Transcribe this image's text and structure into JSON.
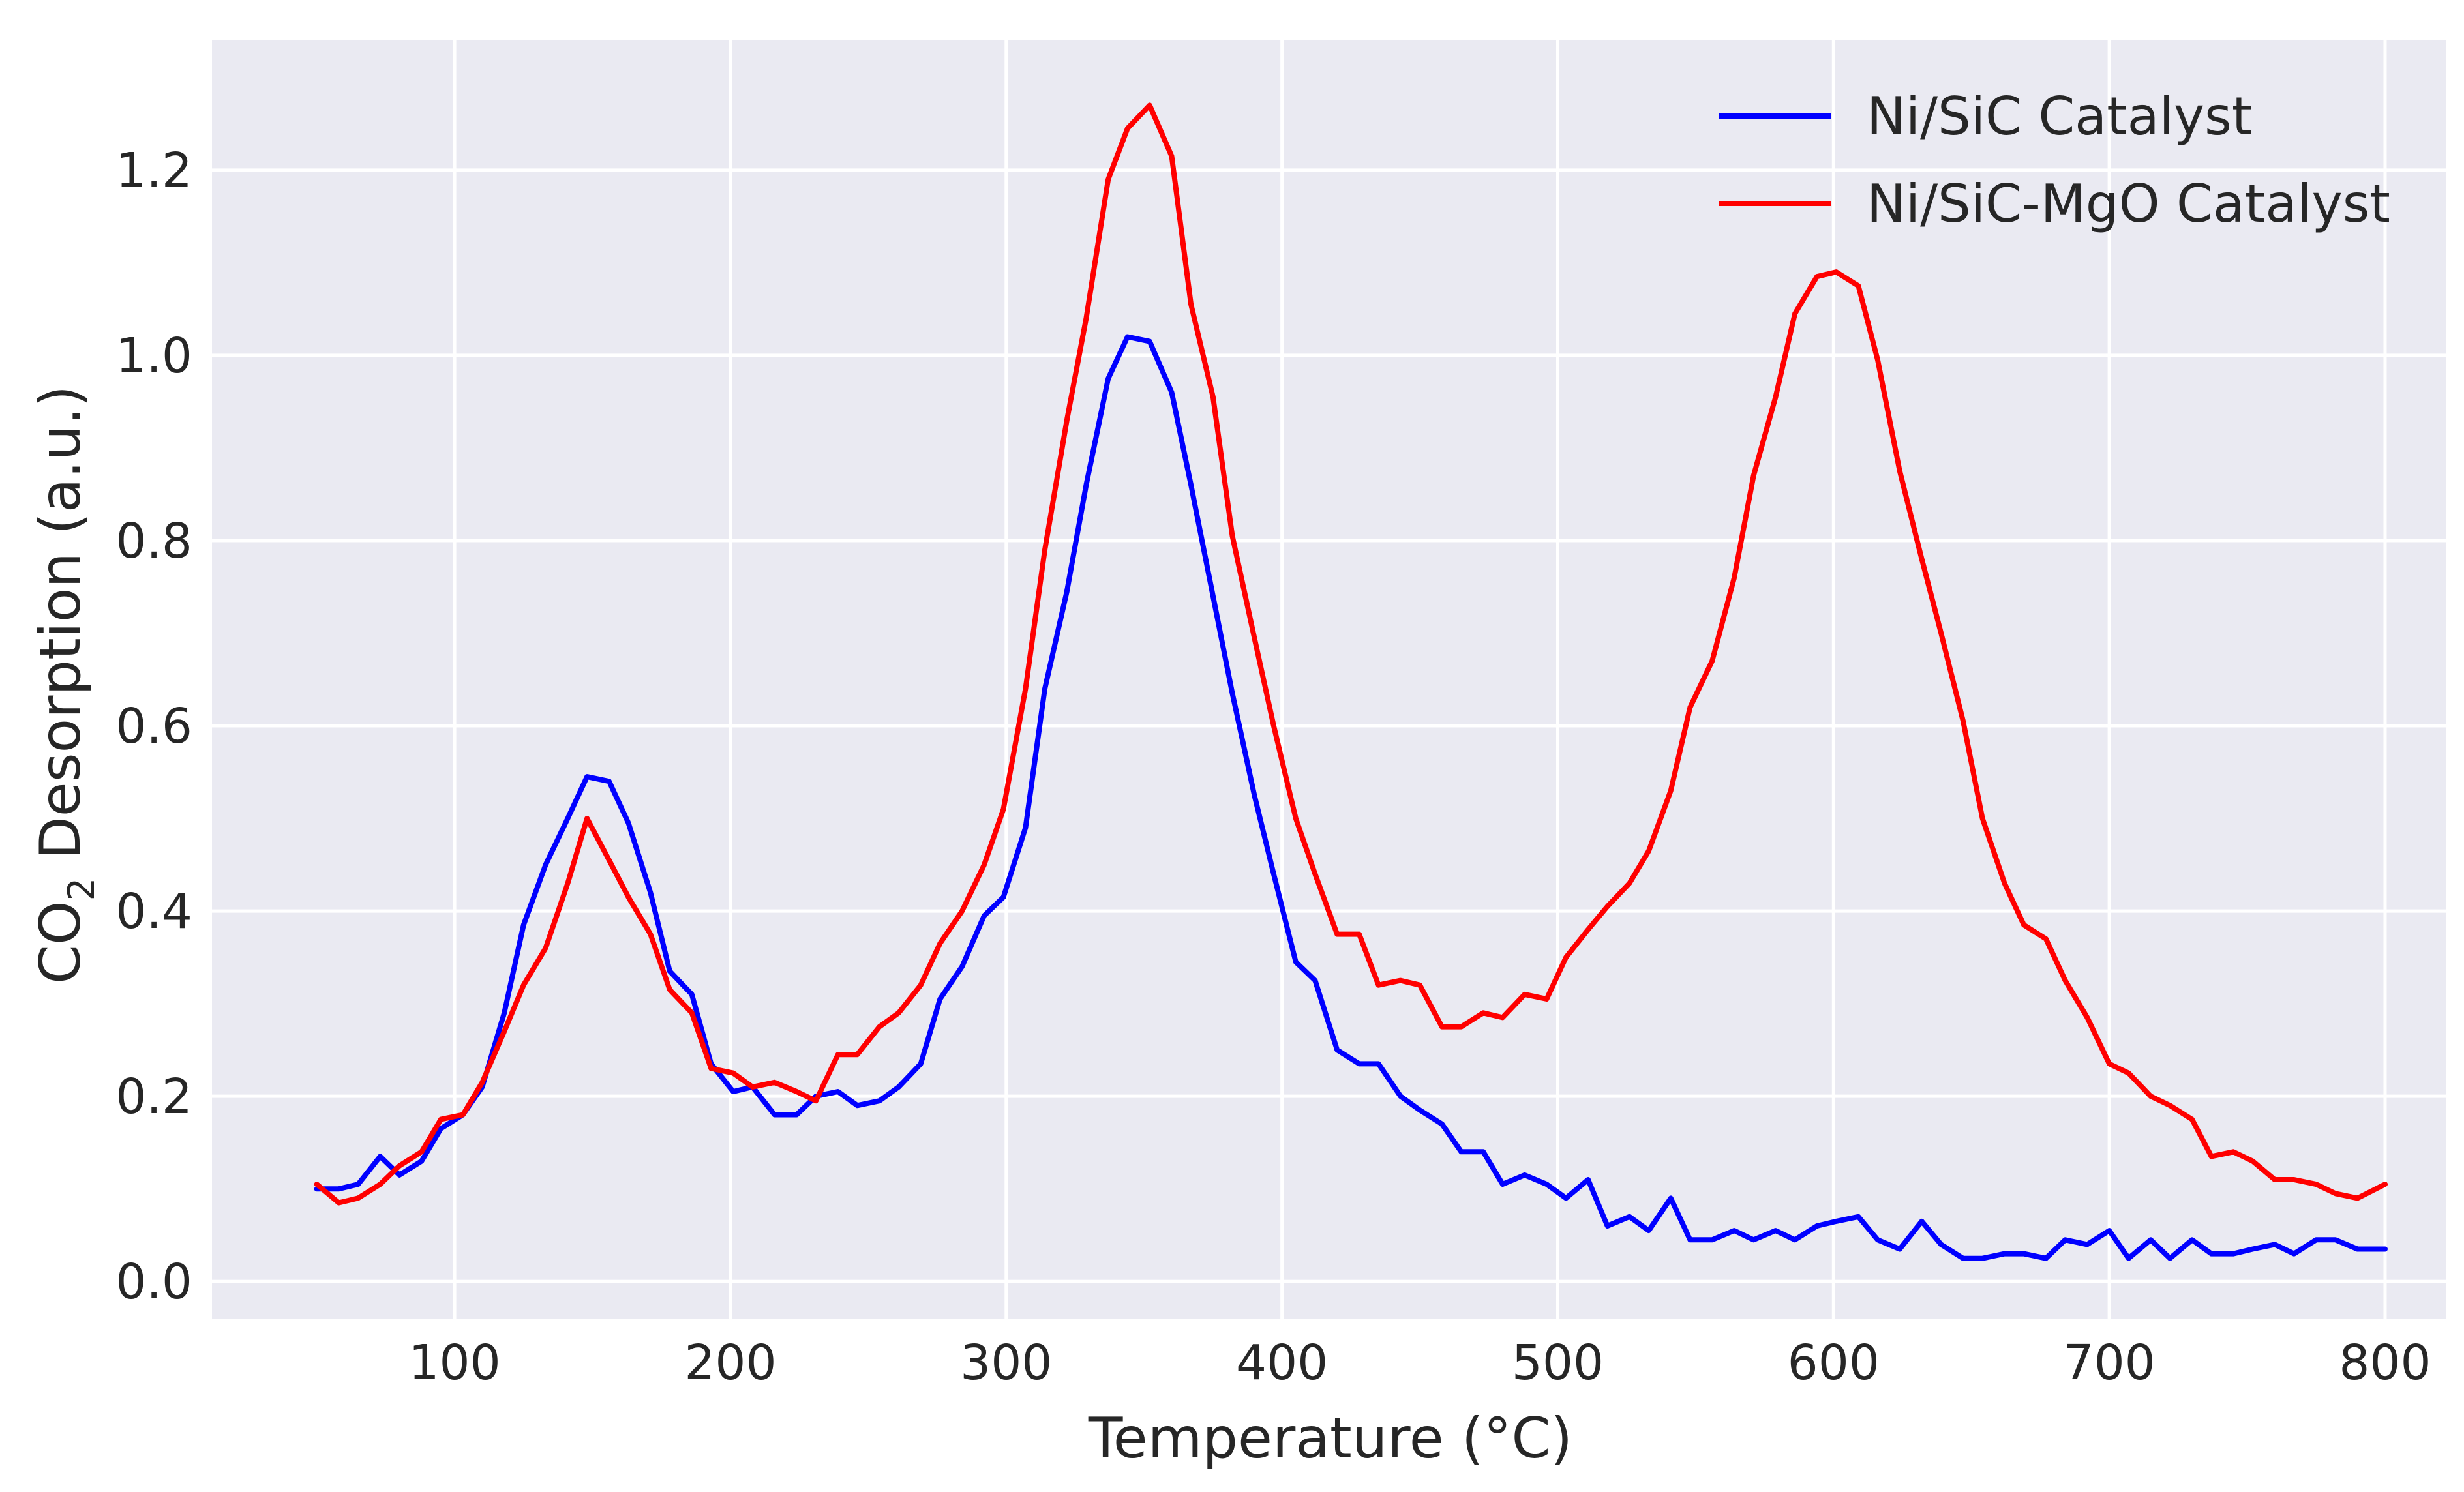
{
  "chart_data": {
    "type": "line",
    "title": "",
    "xlabel": "Temperature (°C)",
    "ylabel_sub": "CO",
    "ylabel_subscript": "2",
    "ylabel_rest": " Desorption (a.u.)",
    "xlim": [
      12,
      822
    ],
    "ylim": [
      -0.04,
      1.34
    ],
    "xticks": [
      100,
      200,
      300,
      400,
      500,
      600,
      700,
      800
    ],
    "xtick_labels": [
      "100",
      "200",
      "300",
      "400",
      "500",
      "600",
      "700",
      "800"
    ],
    "yticks": [
      0.0,
      0.2,
      0.4,
      0.6,
      0.8,
      1.0,
      1.2
    ],
    "ytick_labels": [
      "0.0",
      "0.2",
      "0.4",
      "0.6",
      "0.8",
      "1.0",
      "1.2"
    ],
    "grid": true,
    "legend_position": "top-right",
    "background": "#EAEAF2",
    "series": [
      {
        "name": "Ni/SiC Catalyst",
        "color": "#0000FF",
        "x": [
          50,
          58,
          65,
          73,
          80,
          88,
          95,
          103,
          110,
          118,
          125,
          133,
          141,
          148,
          156,
          163,
          171,
          178,
          186,
          193,
          201,
          208,
          216,
          224,
          231,
          239,
          246,
          254,
          261,
          269,
          276,
          284,
          292,
          299,
          307,
          314,
          322,
          329,
          337,
          344,
          352,
          360,
          367,
          375,
          382,
          390,
          397,
          405,
          412,
          420,
          428,
          435,
          443,
          450,
          458,
          465,
          473,
          480,
          488,
          496,
          503,
          511,
          518,
          526,
          533,
          541,
          548,
          556,
          564,
          571,
          579,
          586,
          594,
          601,
          609,
          616,
          624,
          632,
          639,
          647,
          654,
          662,
          669,
          677,
          684,
          692,
          700,
          707,
          715,
          722,
          730,
          737,
          745,
          752,
          760,
          767,
          775,
          782,
          790,
          800
        ],
        "y": [
          0.1,
          0.1,
          0.105,
          0.135,
          0.115,
          0.13,
          0.165,
          0.18,
          0.21,
          0.29,
          0.385,
          0.45,
          0.5,
          0.545,
          0.54,
          0.495,
          0.42,
          0.335,
          0.31,
          0.235,
          0.205,
          0.21,
          0.18,
          0.18,
          0.2,
          0.205,
          0.19,
          0.195,
          0.21,
          0.235,
          0.305,
          0.34,
          0.395,
          0.415,
          0.49,
          0.64,
          0.745,
          0.86,
          0.975,
          1.02,
          1.015,
          0.96,
          0.86,
          0.74,
          0.635,
          0.525,
          0.44,
          0.345,
          0.325,
          0.25,
          0.235,
          0.235,
          0.2,
          0.185,
          0.17,
          0.14,
          0.14,
          0.105,
          0.115,
          0.105,
          0.09,
          0.11,
          0.06,
          0.07,
          0.055,
          0.09,
          0.045,
          0.045,
          0.055,
          0.045,
          0.055,
          0.045,
          0.06,
          0.065,
          0.07,
          0.045,
          0.035,
          0.065,
          0.04,
          0.025,
          0.025,
          0.03,
          0.03,
          0.025,
          0.045,
          0.04,
          0.055,
          0.025,
          0.045,
          0.025,
          0.045,
          0.03,
          0.03,
          0.035,
          0.04,
          0.03,
          0.045,
          0.045,
          0.035,
          0.035
        ]
      },
      {
        "name": "Ni/SiC-MgO Catalyst",
        "color": "#FF0000",
        "x": [
          50,
          58,
          65,
          73,
          80,
          88,
          95,
          103,
          110,
          118,
          125,
          133,
          141,
          148,
          156,
          163,
          171,
          178,
          186,
          193,
          201,
          208,
          216,
          224,
          231,
          239,
          246,
          254,
          261,
          269,
          276,
          284,
          292,
          299,
          307,
          314,
          322,
          329,
          337,
          344,
          352,
          360,
          367,
          375,
          382,
          390,
          397,
          405,
          412,
          420,
          428,
          435,
          443,
          450,
          458,
          465,
          473,
          480,
          488,
          496,
          503,
          511,
          518,
          526,
          533,
          541,
          548,
          556,
          564,
          571,
          579,
          586,
          594,
          601,
          609,
          616,
          624,
          632,
          639,
          647,
          654,
          662,
          669,
          677,
          684,
          692,
          700,
          707,
          715,
          722,
          730,
          737,
          745,
          752,
          760,
          767,
          775,
          782,
          790,
          800
        ],
        "y": [
          0.105,
          0.085,
          0.09,
          0.105,
          0.125,
          0.14,
          0.175,
          0.18,
          0.215,
          0.27,
          0.32,
          0.36,
          0.43,
          0.5,
          0.455,
          0.415,
          0.375,
          0.315,
          0.29,
          0.23,
          0.225,
          0.21,
          0.215,
          0.205,
          0.195,
          0.245,
          0.245,
          0.275,
          0.29,
          0.32,
          0.365,
          0.4,
          0.45,
          0.51,
          0.64,
          0.79,
          0.93,
          1.04,
          1.19,
          1.245,
          1.27,
          1.215,
          1.055,
          0.955,
          0.805,
          0.695,
          0.6,
          0.5,
          0.44,
          0.375,
          0.375,
          0.32,
          0.325,
          0.32,
          0.275,
          0.275,
          0.29,
          0.285,
          0.31,
          0.305,
          0.35,
          0.38,
          0.405,
          0.43,
          0.465,
          0.53,
          0.62,
          0.67,
          0.76,
          0.87,
          0.955,
          1.045,
          1.085,
          1.09,
          1.075,
          0.995,
          0.875,
          0.78,
          0.7,
          0.605,
          0.5,
          0.43,
          0.385,
          0.37,
          0.325,
          0.285,
          0.235,
          0.225,
          0.2,
          0.19,
          0.175,
          0.135,
          0.14,
          0.13,
          0.11,
          0.11,
          0.105,
          0.095,
          0.09,
          0.105
        ]
      }
    ]
  }
}
